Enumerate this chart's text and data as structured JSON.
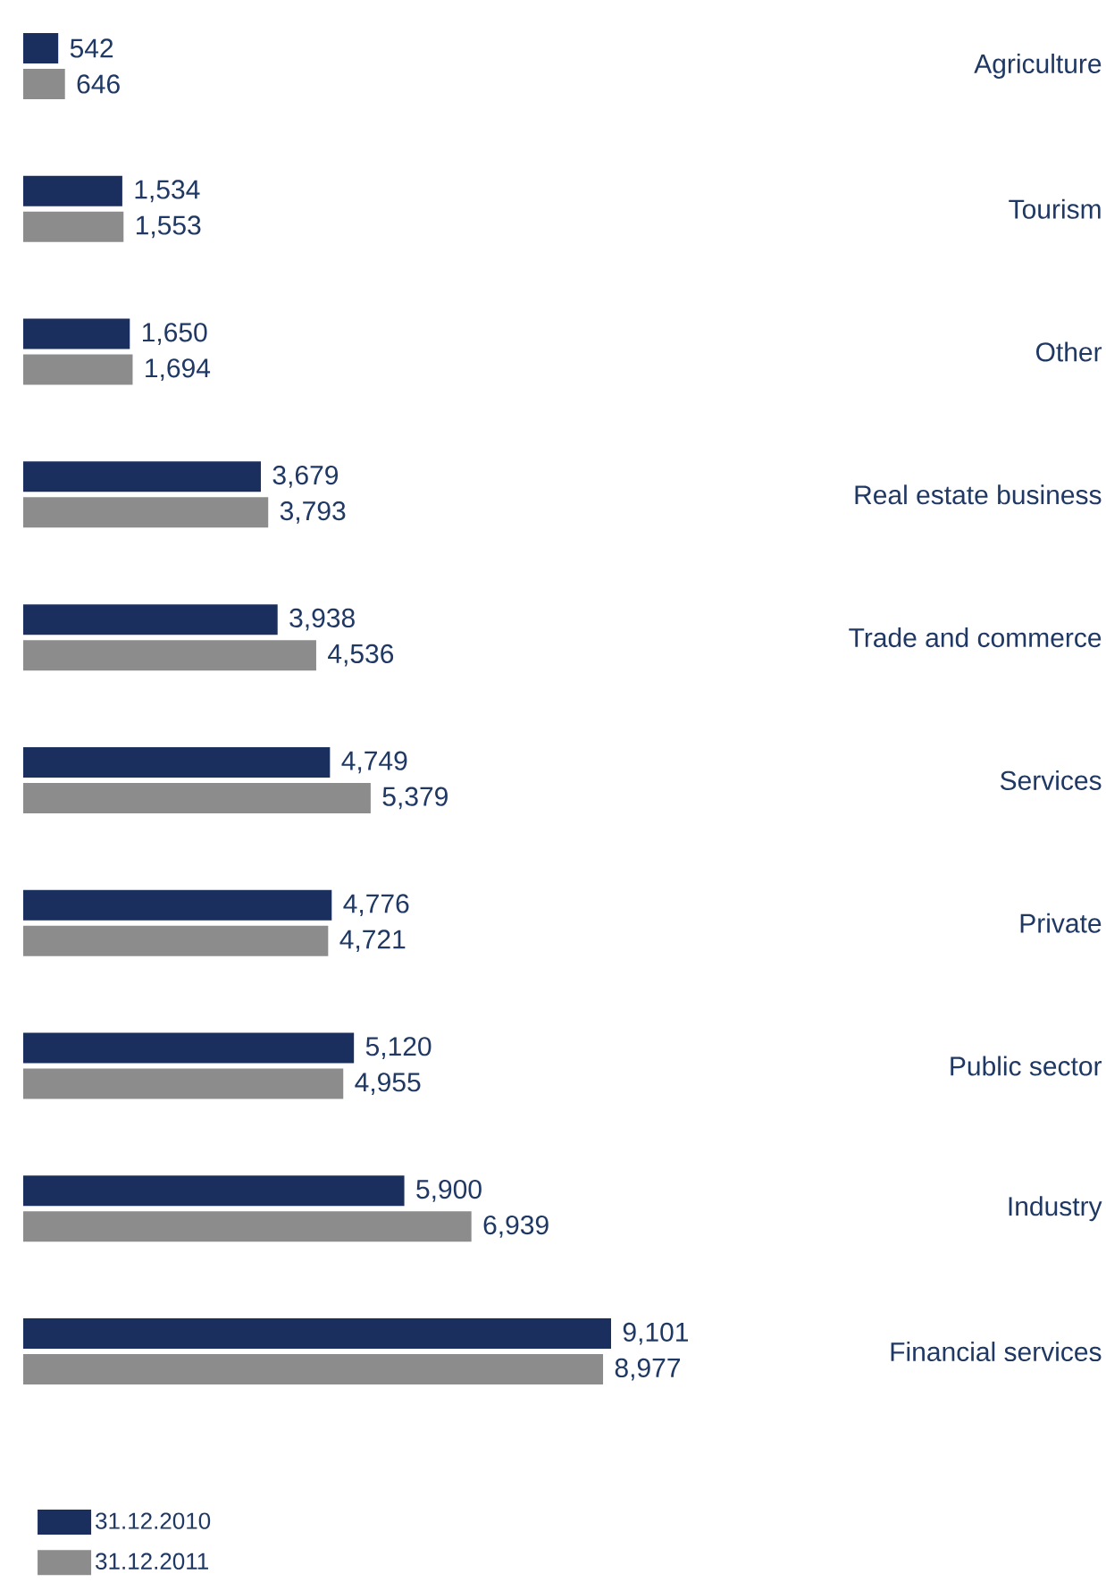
{
  "chart_data": {
    "type": "bar",
    "orientation": "horizontal",
    "data_labels": true,
    "legend": "bottom left",
    "categories": [
      "Agriculture",
      "Tourism",
      "Other",
      "Real estate business",
      "Trade and commerce",
      "Services",
      "Private",
      "Public sector",
      "Industry",
      "Financial services"
    ],
    "series": [
      {
        "name": "31.12.2010",
        "color": "#1b2f5e",
        "values": [
          542,
          1534,
          1650,
          3679,
          3938,
          4749,
          4776,
          5120,
          5900,
          9101
        ],
        "value_labels": [
          "542",
          "1,534",
          "1,650",
          "3,679",
          "3,938",
          "4,749",
          "4,776",
          "5,120",
          "5,900",
          "9,101"
        ]
      },
      {
        "name": "31.12.2011",
        "color": "#8c8c8c",
        "values": [
          646,
          1553,
          1694,
          3793,
          4536,
          5379,
          4721,
          4955,
          6939,
          8977
        ],
        "value_labels": [
          "646",
          "1,553",
          "1,694",
          "3,793",
          "4,536",
          "5,379",
          "4,721",
          "4,955",
          "6,939",
          "8,977"
        ]
      }
    ]
  }
}
